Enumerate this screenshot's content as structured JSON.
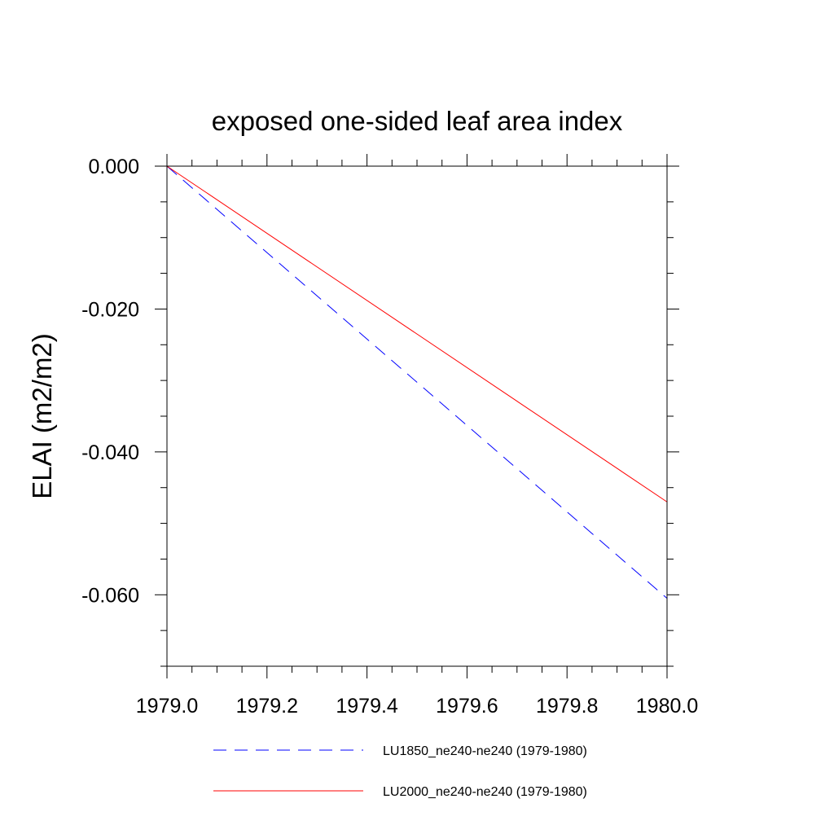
{
  "chart_data": {
    "type": "line",
    "title": "exposed one-sided leaf area index",
    "xlabel": "",
    "ylabel": "ELAI  (m2/m2)",
    "xlim": [
      1979.0,
      1980.0
    ],
    "ylim": [
      -0.07,
      0.0
    ],
    "x_ticks": [
      "1979.0",
      "1979.2",
      "1979.4",
      "1979.6",
      "1979.8",
      "1980.0"
    ],
    "x_tick_values": [
      1979.0,
      1979.2,
      1979.4,
      1979.6,
      1979.8,
      1980.0
    ],
    "y_ticks": [
      "0.000",
      "-0.020",
      "-0.040",
      "-0.060"
    ],
    "y_tick_values": [
      0.0,
      -0.02,
      -0.04,
      -0.06
    ],
    "y_minor_step": 0.005,
    "x_minor_step": 0.05,
    "grid": false,
    "legend_position": "bottom",
    "series": [
      {
        "name": "LU1850_ne240-ne240 (1979-1980)",
        "color": "#0000ff",
        "dash": "dashed",
        "x": [
          1979.0,
          1980.0
        ],
        "y": [
          0.0,
          -0.0605
        ]
      },
      {
        "name": "LU2000_ne240-ne240 (1979-1980)",
        "color": "#ff0000",
        "dash": "solid",
        "x": [
          1979.0,
          1980.0
        ],
        "y": [
          0.0,
          -0.047
        ]
      }
    ]
  }
}
